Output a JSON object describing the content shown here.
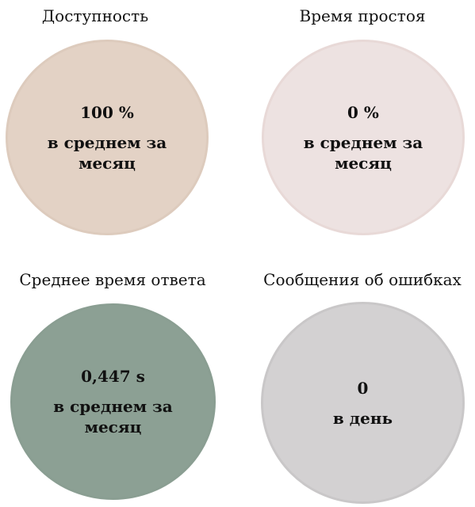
{
  "tiles": [
    {
      "title": "Доступность",
      "value": "100 %",
      "subtitle": "в среднем за месяц",
      "color": "#e3d2c5",
      "border": "#ddcbbd"
    },
    {
      "title": "Время простоя",
      "value": "0 %",
      "subtitle": "в среднем за месяц",
      "color": "#ede2e1",
      "border": "#e8d9d7"
    },
    {
      "title": "Среднее время ответа",
      "value": "0,447 s",
      "subtitle": "в среднем за месяц",
      "color": "#8ca094",
      "border": "#8a9e92"
    },
    {
      "title": "Сообщения об ошибках",
      "value": "0",
      "subtitle": "в день",
      "color": "#d3d1d2",
      "border": "#c9c7c8"
    }
  ]
}
